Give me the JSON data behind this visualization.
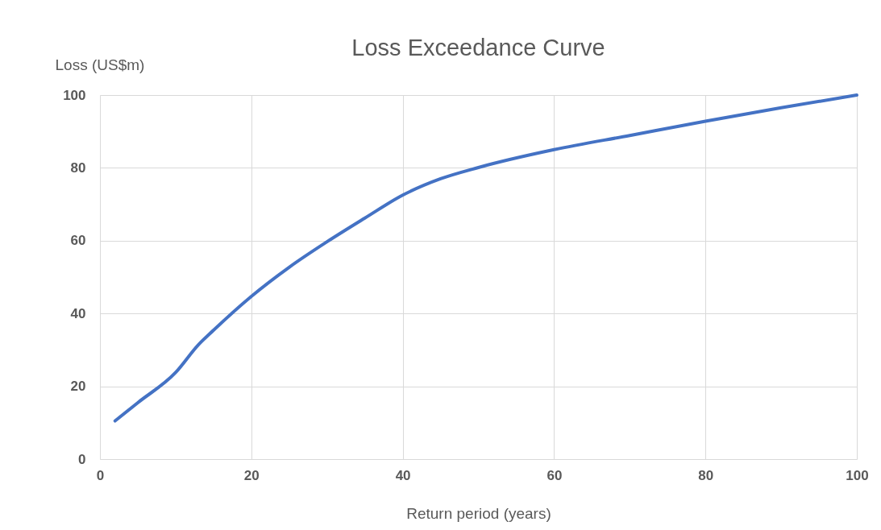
{
  "chart_data": {
    "type": "line",
    "title": "Loss Exceedance Curve",
    "xlabel": "Return period (years)",
    "ylabel": "Loss (US$m)",
    "x": [
      2,
      5,
      10,
      13,
      15,
      20,
      25,
      30,
      35,
      40,
      45,
      50,
      60,
      70,
      80,
      90,
      100
    ],
    "series": [
      {
        "color": "#4472c4",
        "values": [
          10.5,
          15.5,
          23.8,
          31.4,
          35.4,
          44.7,
          52.7,
          59.7,
          66.2,
          72.5,
          77,
          80.1,
          85,
          88.9,
          92.8,
          96.5,
          100
        ]
      }
    ],
    "xlim": [
      0,
      100
    ],
    "xticks": [
      0,
      20,
      40,
      60,
      80,
      100
    ],
    "ylim": [
      0,
      100
    ],
    "yticks": [
      0,
      20,
      40,
      60,
      80,
      100
    ],
    "grid": true
  }
}
